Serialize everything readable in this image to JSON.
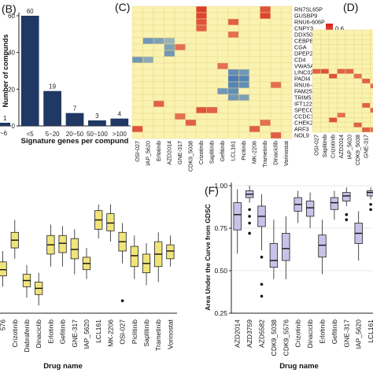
{
  "panels": {
    "B": "(B)",
    "C": "(C)",
    "D": "(D)",
    "F": "(F)"
  },
  "colors": {
    "bar": "#1f3864",
    "heat_low": "#3a72b8",
    "heat_mid": "#faf2b0",
    "heat_high": "#d7261e",
    "box_left": "#f0e47a",
    "box_right": "#c9c2e8"
  },
  "chart_data": [
    {
      "id": "panel-B",
      "type": "bar",
      "title": "",
      "xlabel": "Signature genes per compund",
      "ylabel": "Number of compunds",
      "categories": [
        "<5",
        "5~20",
        "20~50",
        "50~100",
        ">100"
      ],
      "values": [
        60,
        19,
        7,
        3,
        4
      ],
      "data_labels": [
        "60",
        "19",
        "7",
        "3",
        "4"
      ],
      "ylim": [
        0,
        60
      ],
      "yticks": [
        "0",
        "20",
        "40",
        "60"
      ],
      "partial_left_bar": {
        "label": "1",
        "tick": "~6"
      }
    },
    {
      "id": "panel-C",
      "type": "heatmap",
      "rows": [
        "RN7SL65P",
        "GUSBP9",
        "RNU6-606P",
        "CNPY3",
        "DDX50P1",
        "CEBPB",
        "CGA",
        "DPEP2",
        "CD4",
        "VWA5A",
        "LINC02433",
        "PADI4",
        "RNU6-40P",
        "FAM25C",
        "TRIM51CP",
        "IFT122",
        "SPECC1L",
        "CCDC142",
        "CHEK2",
        "ARF3",
        "NOL9"
      ],
      "columns": [
        "OSI-027",
        "IAP_5620",
        "Erlotinib",
        "AZD2014",
        "GNE-317",
        "CDK9_5038",
        "Crizotinib",
        "Saplitinib",
        "Gefitinib",
        "LCL161",
        "Picitinib",
        "MK-2206",
        "Trametinib",
        "Dinaciclib",
        "Vorinostat"
      ],
      "scale_ticks": [
        "0.6",
        "0.4",
        "0.2",
        "0.0",
        "-0.2",
        "-0.4",
        "-0.6"
      ],
      "range": [
        -0.7,
        0.7
      ],
      "cells": [
        [
          0,
          6,
          0.62
        ],
        [
          1,
          6,
          0.6
        ],
        [
          2,
          6,
          0.55
        ],
        [
          3,
          6,
          0.5
        ],
        [
          2,
          9,
          0.5
        ],
        [
          0,
          12,
          0.55
        ],
        [
          1,
          12,
          0.6
        ],
        [
          4,
          9,
          0.45
        ],
        [
          5,
          1,
          -0.5
        ],
        [
          5,
          2,
          -0.45
        ],
        [
          5,
          3,
          -0.35
        ],
        [
          6,
          3,
          -0.45
        ],
        [
          7,
          3,
          -0.5
        ],
        [
          6,
          4,
          0.45
        ],
        [
          8,
          0,
          -0.5
        ],
        [
          8,
          1,
          -0.4
        ],
        [
          9,
          8,
          0.45
        ],
        [
          10,
          9,
          -0.55
        ],
        [
          10,
          10,
          -0.5
        ],
        [
          11,
          9,
          -0.65
        ],
        [
          11,
          10,
          -0.6
        ],
        [
          12,
          9,
          -0.6
        ],
        [
          12,
          10,
          -0.55
        ],
        [
          13,
          8,
          -0.5
        ],
        [
          13,
          9,
          -0.55
        ],
        [
          14,
          9,
          -0.5
        ],
        [
          14,
          10,
          -0.45
        ],
        [
          15,
          2,
          0.5
        ],
        [
          16,
          6,
          0.55
        ],
        [
          16,
          7,
          0.5
        ],
        [
          17,
          4,
          0.45
        ],
        [
          18,
          5,
          0.5
        ],
        [
          18,
          12,
          0.45
        ],
        [
          19,
          0,
          0.55
        ],
        [
          19,
          11,
          0.5
        ],
        [
          20,
          13,
          0.5
        ],
        [
          12,
          13,
          0.45
        ]
      ]
    },
    {
      "id": "panel-D",
      "type": "heatmap",
      "columns": [
        "OSI-027",
        "Saplitinib",
        "Crizotinib",
        "AZD2014",
        "IAP_5620",
        "CDK9_5038",
        "GNE-317",
        "CDK9_5576"
      ],
      "rows_visible": 21,
      "cells": [
        [
          8,
          0,
          0.5
        ],
        [
          8,
          1,
          0.55
        ],
        [
          9,
          2,
          0.55
        ],
        [
          8,
          3,
          0.5
        ],
        [
          8,
          4,
          0.5
        ],
        [
          9,
          5,
          0.45
        ],
        [
          10,
          6,
          0.5
        ],
        [
          11,
          7,
          0.45
        ],
        [
          15,
          6,
          0.5
        ],
        [
          16,
          7,
          0.5
        ],
        [
          17,
          3,
          0.45
        ],
        [
          18,
          2,
          0.55
        ],
        [
          19,
          5,
          0.5
        ],
        [
          20,
          6,
          0.5
        ],
        [
          20,
          7,
          0.45
        ]
      ]
    },
    {
      "id": "panel-E",
      "type": "box",
      "xlabel": "Drug name",
      "ylabel": "",
      "categories": [
        "576",
        "Crizotinib",
        "Dabrafenib",
        "Dinaciclib",
        "Erlotinib",
        "Gefitinib",
        "GNE-317",
        "IAP_5620",
        "LCL161",
        "MK-2206",
        "OSI-027",
        "Piclitinib",
        "Saplitinib",
        "Trametinib",
        "Vorinostat"
      ],
      "boxes": [
        {
          "q1": 0.44,
          "median": 0.48,
          "q3": 0.53,
          "lo": 0.37,
          "hi": 0.6,
          "out": []
        },
        {
          "q1": 0.62,
          "median": 0.67,
          "q3": 0.72,
          "lo": 0.55,
          "hi": 0.8,
          "out": []
        },
        {
          "q1": 0.37,
          "median": 0.41,
          "q3": 0.45,
          "lo": 0.3,
          "hi": 0.51,
          "out": []
        },
        {
          "q1": 0.32,
          "median": 0.36,
          "q3": 0.4,
          "lo": 0.25,
          "hi": 0.46,
          "out": []
        },
        {
          "q1": 0.58,
          "median": 0.64,
          "q3": 0.7,
          "lo": 0.5,
          "hi": 0.77,
          "out": []
        },
        {
          "q1": 0.59,
          "median": 0.65,
          "q3": 0.7,
          "lo": 0.5,
          "hi": 0.76,
          "out": []
        },
        {
          "q1": 0.55,
          "median": 0.61,
          "q3": 0.68,
          "lo": 0.45,
          "hi": 0.74,
          "out": []
        },
        {
          "q1": 0.48,
          "median": 0.52,
          "q3": 0.56,
          "lo": 0.42,
          "hi": 0.62,
          "out": []
        },
        {
          "q1": 0.74,
          "median": 0.8,
          "q3": 0.86,
          "lo": 0.68,
          "hi": 0.9,
          "out": []
        },
        {
          "q1": 0.73,
          "median": 0.78,
          "q3": 0.84,
          "lo": 0.66,
          "hi": 0.9,
          "out": []
        },
        {
          "q1": 0.6,
          "median": 0.66,
          "q3": 0.72,
          "lo": 0.52,
          "hi": 0.78,
          "out": [
            0.28
          ]
        },
        {
          "q1": 0.5,
          "median": 0.57,
          "q3": 0.63,
          "lo": 0.42,
          "hi": 0.7,
          "out": []
        },
        {
          "q1": 0.46,
          "median": 0.52,
          "q3": 0.58,
          "lo": 0.38,
          "hi": 0.65,
          "out": []
        },
        {
          "q1": 0.5,
          "median": 0.58,
          "q3": 0.66,
          "lo": 0.4,
          "hi": 0.72,
          "out": []
        },
        {
          "q1": 0.55,
          "median": 0.6,
          "q3": 0.64,
          "lo": 0.5,
          "hi": 0.7,
          "out": []
        }
      ]
    },
    {
      "id": "panel-F",
      "type": "box",
      "xlabel": "Drug name",
      "ylabel": "Area Under the Curve from GDSC",
      "ylim": [
        0.25,
        1.0
      ],
      "yticks": [
        "0.25",
        "0.50",
        "0.75",
        "1.00"
      ],
      "categories": [
        "AZD2014",
        "AZD3759",
        "AZD5582",
        "CDK9_5038",
        "CDK9_5576",
        "Crizotinib",
        "Dinaciclib",
        "Erlotinib",
        "Gefitinib",
        "GNE-317",
        "IAP_5620",
        "LCL161",
        "MK-2206",
        "OSI-027",
        "Piclitinib",
        "Saplitinib"
      ],
      "boxes": [
        {
          "q1": 0.74,
          "median": 0.83,
          "q3": 0.9,
          "lo": 0.6,
          "hi": 0.98,
          "out": []
        },
        {
          "q1": 0.93,
          "median": 0.95,
          "q3": 0.97,
          "lo": 0.9,
          "hi": 1.0,
          "out": [
            0.86,
            0.82,
            0.78,
            0.72
          ]
        },
        {
          "q1": 0.76,
          "median": 0.82,
          "q3": 0.88,
          "lo": 0.62,
          "hi": 0.95,
          "out": [
            0.58,
            0.42,
            0.35
          ]
        },
        {
          "q1": 0.52,
          "median": 0.56,
          "q3": 0.66,
          "lo": 0.45,
          "hi": 0.8,
          "out": []
        },
        {
          "q1": 0.56,
          "median": 0.63,
          "q3": 0.72,
          "lo": 0.45,
          "hi": 0.82,
          "out": []
        },
        {
          "q1": 0.85,
          "median": 0.89,
          "q3": 0.93,
          "lo": 0.78,
          "hi": 0.97,
          "out": []
        },
        {
          "q1": 0.82,
          "median": 0.87,
          "q3": 0.91,
          "lo": 0.75,
          "hi": 0.96,
          "out": []
        },
        {
          "q1": 0.58,
          "median": 0.65,
          "q3": 0.71,
          "lo": 0.48,
          "hi": 0.8,
          "out": []
        },
        {
          "q1": 0.86,
          "median": 0.9,
          "q3": 0.93,
          "lo": 0.8,
          "hi": 0.97,
          "out": []
        },
        {
          "q1": 0.91,
          "median": 0.94,
          "q3": 0.96,
          "lo": 0.88,
          "hi": 0.99,
          "out": [
            0.83,
            0.8
          ]
        },
        {
          "q1": 0.66,
          "median": 0.72,
          "q3": 0.78,
          "lo": 0.56,
          "hi": 0.85,
          "out": []
        },
        {
          "q1": 0.94,
          "median": 0.96,
          "q3": 0.97,
          "lo": 0.92,
          "hi": 0.99,
          "out": [
            0.89,
            0.86
          ]
        },
        {
          "q1": 0.86,
          "median": 0.9,
          "q3": 0.93,
          "lo": 0.8,
          "hi": 0.97,
          "out": []
        },
        {
          "q1": 0.85,
          "median": 0.89,
          "q3": 0.92,
          "lo": 0.78,
          "hi": 0.96,
          "out": []
        },
        {
          "q1": 0.75,
          "median": 0.79,
          "q3": 0.84,
          "lo": 0.7,
          "hi": 0.88,
          "out": []
        },
        {
          "q1": 0.7,
          "median": 0.76,
          "q3": 0.82,
          "lo": 0.62,
          "hi": 0.88,
          "out": []
        }
      ]
    }
  ]
}
